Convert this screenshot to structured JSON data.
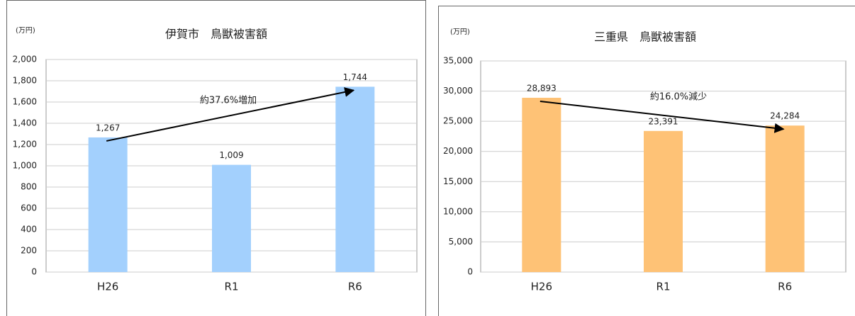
{
  "chart_data": [
    {
      "type": "bar",
      "title": "伊賀市　鳥獣被害額",
      "unit": "(万円)",
      "categories": [
        "H26",
        "R1",
        "R6"
      ],
      "values": [
        1267,
        1009,
        1744
      ],
      "value_labels": [
        "1,267",
        "1,009",
        "1,744"
      ],
      "color": "#a3d0fd",
      "ylim": [
        0,
        2000
      ],
      "yticks": [
        0,
        200,
        400,
        600,
        800,
        {
          "value": 1000,
          "label": "1,000"
        },
        {
          "value": 1200,
          "label": "1,200"
        },
        {
          "value": 1400,
          "label": "1,400"
        },
        {
          "value": 1600,
          "label": "1,600"
        },
        {
          "value": 1800,
          "label": "1,800"
        },
        {
          "value": 2000,
          "label": "2,000"
        }
      ],
      "grid": true,
      "annotation": "約37.6%増加"
    },
    {
      "type": "bar",
      "title": "三重県　鳥獣被害額",
      "unit": "(万円)",
      "categories": [
        "H26",
        "R1",
        "R6"
      ],
      "values": [
        28893,
        23391,
        24284
      ],
      "value_labels": [
        "28,893",
        "23,391",
        "24,284"
      ],
      "color": "#fec276",
      "ylim": [
        0,
        35000
      ],
      "yticks": [
        0,
        {
          "value": 5000,
          "label": "5,000"
        },
        {
          "value": 10000,
          "label": "10,000"
        },
        {
          "value": 15000,
          "label": "15,000"
        },
        {
          "value": 20000,
          "label": "20,000"
        },
        {
          "value": 25000,
          "label": "25,000"
        },
        {
          "value": 30000,
          "label": "30,000"
        },
        {
          "value": 35000,
          "label": "35,000"
        }
      ],
      "grid": true,
      "annotation": "約16.0%減少"
    }
  ]
}
